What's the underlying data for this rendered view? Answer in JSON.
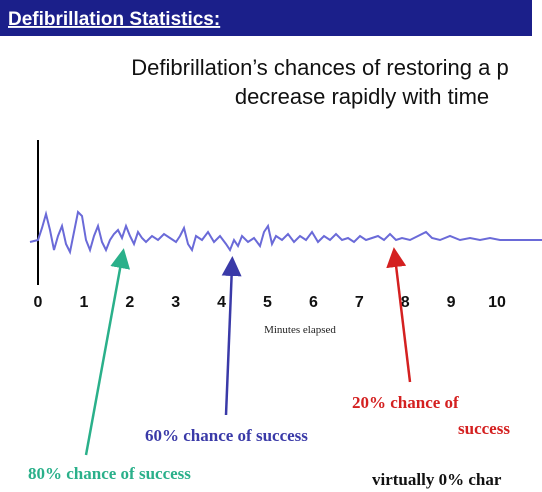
{
  "header": {
    "title": "Defibrillation Statistics:"
  },
  "subtitle": {
    "lines": [
      "Defibrillation’s chances of restoring a p",
      "decrease rapidly with time"
    ]
  },
  "axis": {
    "ticks": [
      0,
      1,
      2,
      3,
      4,
      5,
      6,
      7,
      8,
      9,
      10
    ],
    "label": "Minutes elapsed"
  },
  "annotations": {
    "eighty": "80% chance of success",
    "sixty": "60% chance of success",
    "twenty": [
      "20% chance of",
      "success"
    ],
    "zero": "virtually 0% char"
  }
}
